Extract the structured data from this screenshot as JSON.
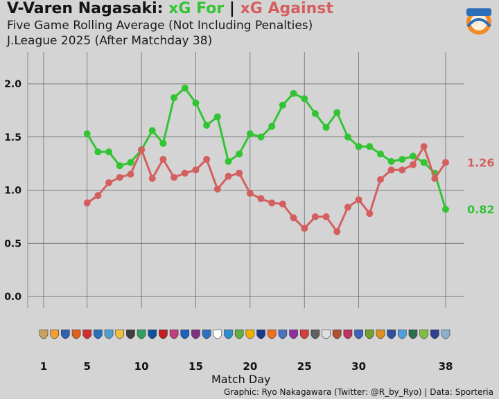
{
  "header": {
    "team": "V-Varen Nagasaki:",
    "for_label": "xG For",
    "separator": "|",
    "against_label": "xG Against",
    "subtitle": "Five Game Rolling Average (Not Including Penalties)",
    "subtitle2": "J.League 2025 (After Matchday 38)"
  },
  "logo_text": "V-VAREN",
  "credit": "Graphic: Ryo Nakagawara (Twitter: @R_by_Ryo) | Data: Sporteria",
  "colors": {
    "background": "#d4d4d4",
    "xg_for": "#33c433",
    "xg_against": "#d45f5f",
    "grid": "#555555"
  },
  "chart_data": {
    "type": "line",
    "title": "V-Varen Nagasaki: xG For | xG Against",
    "xlabel": "Match Day",
    "ylabel": "",
    "xlim": [
      0,
      39.5
    ],
    "ylim": [
      -0.12,
      2.25
    ],
    "x_ticks": [
      1,
      5,
      10,
      15,
      20,
      25,
      30,
      38
    ],
    "x_tick_labels": [
      "1",
      "5",
      "10",
      "15",
      "20",
      "25",
      "30",
      "38"
    ],
    "y_ticks": [
      0,
      0.5,
      1,
      1.5,
      2
    ],
    "y_tick_labels": [
      "0.0",
      "0.5",
      "1.0",
      "1.5",
      "2.0"
    ],
    "grid": true,
    "x": [
      5,
      6,
      7,
      8,
      9,
      10,
      11,
      12,
      13,
      14,
      15,
      16,
      17,
      18,
      19,
      20,
      21,
      22,
      23,
      24,
      25,
      26,
      27,
      28,
      29,
      30,
      31,
      32,
      33,
      34,
      35,
      36,
      37,
      38
    ],
    "series": [
      {
        "name": "xG For",
        "color": "#33c433",
        "end_label": "0.82",
        "values": [
          1.53,
          1.36,
          1.36,
          1.23,
          1.26,
          1.38,
          1.56,
          1.44,
          1.87,
          1.96,
          1.82,
          1.61,
          1.69,
          1.27,
          1.34,
          1.53,
          1.5,
          1.6,
          1.8,
          1.91,
          1.86,
          1.72,
          1.59,
          1.73,
          1.5,
          1.41,
          1.41,
          1.34,
          1.27,
          1.29,
          1.32,
          1.26,
          1.16,
          0.82
        ]
      },
      {
        "name": "xG Against",
        "color": "#d45f5f",
        "end_label": "1.26",
        "values": [
          0.88,
          0.95,
          1.07,
          1.12,
          1.15,
          1.38,
          1.11,
          1.29,
          1.12,
          1.16,
          1.19,
          1.29,
          1.01,
          1.13,
          1.16,
          0.97,
          0.92,
          0.88,
          0.87,
          0.74,
          0.64,
          0.75,
          0.75,
          0.61,
          0.84,
          0.91,
          0.78,
          1.1,
          1.19,
          1.19,
          1.24,
          1.41,
          1.11,
          1.26
        ]
      }
    ],
    "opponent_crest_count": 38
  }
}
